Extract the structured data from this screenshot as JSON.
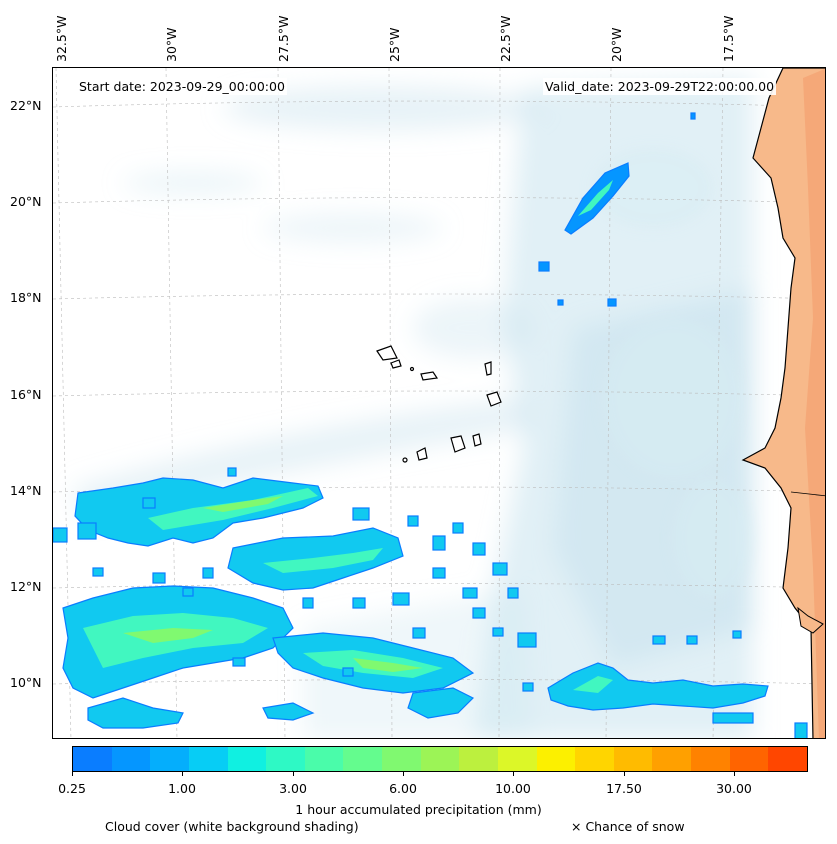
{
  "header": {
    "start_date": "Start date: 2023-09-29_00:00:00",
    "valid_date": "Valid_date: 2023-09-29T22:00:00.00"
  },
  "axes": {
    "longitude_labels": [
      "32.5°W",
      "30°W",
      "27.5°W",
      "25°W",
      "22.5°W",
      "20°W",
      "17.5°W"
    ],
    "latitude_labels": [
      "22°N",
      "20°N",
      "18°N",
      "16°N",
      "14°N",
      "12°N",
      "10°N"
    ]
  },
  "colorbar": {
    "label": "1 hour accumulated precipitation (mm)",
    "tick_labels": [
      "0.25",
      "1.00",
      "3.00",
      "6.00",
      "10.00",
      "17.50",
      "30.00"
    ],
    "colors": [
      "#0a7dff",
      "#0596ff",
      "#05aefc",
      "#07cdf5",
      "#10f0e1",
      "#2ef9c5",
      "#4afcaa",
      "#64fc8e",
      "#80f970",
      "#9cf456",
      "#bcf03e",
      "#dcf728",
      "#fcf000",
      "#ffd500",
      "#ffbb00",
      "#ffa000",
      "#ff8200",
      "#ff6400",
      "#ff4600"
    ]
  },
  "footer": {
    "cloud_cover": "Cloud cover (white background shading)",
    "snow_chance": "× Chance of snow"
  },
  "colors": {
    "land_orange": "#f7b98a",
    "cloud_blue": "#c9e3ee",
    "precip_light": "#11c9f0",
    "precip_mid": "#41f7c0",
    "precip_strong": "#80f970"
  }
}
